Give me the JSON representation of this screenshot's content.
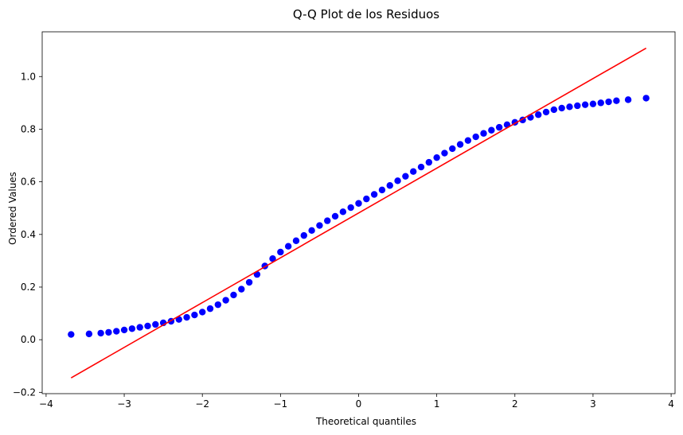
{
  "chart_data": {
    "type": "scatter",
    "title": "Q-Q Plot de los Residuos",
    "xlabel": "Theoretical quantiles",
    "ylabel": "Ordered Values",
    "xlim": [
      -4.05,
      4.05
    ],
    "ylim": [
      -0.205,
      1.17
    ],
    "xticks": [
      -4,
      -3,
      -2,
      -1,
      0,
      1,
      2,
      3,
      4
    ],
    "xtick_labels": [
      "−4",
      "−3",
      "−2",
      "−1",
      "0",
      "1",
      "2",
      "3",
      "4"
    ],
    "yticks": [
      -0.2,
      0.0,
      0.2,
      0.4,
      0.6,
      0.8,
      1.0
    ],
    "ytick_labels": [
      "−0.2",
      "0.0",
      "0.2",
      "0.4",
      "0.6",
      "0.8",
      "1.0"
    ],
    "grid": false,
    "colors": {
      "points": "#0000ff",
      "fit_line": "#ff0000"
    },
    "series": [
      {
        "kind": "points",
        "x": [
          -3.68,
          -3.45,
          -3.3,
          -3.2,
          -3.1,
          -3.0,
          -2.9,
          -2.8,
          -2.7,
          -2.6,
          -2.5,
          -2.4,
          -2.3,
          -2.2,
          -2.1,
          -2.0,
          -1.9,
          -1.8,
          -1.7,
          -1.6,
          -1.5,
          -1.4,
          -1.3,
          -1.2,
          -1.1,
          -1.0,
          -0.9,
          -0.8,
          -0.7,
          -0.6,
          -0.5,
          -0.4,
          -0.3,
          -0.2,
          -0.1,
          0.0,
          0.1,
          0.2,
          0.3,
          0.4,
          0.5,
          0.6,
          0.7,
          0.8,
          0.9,
          1.0,
          1.1,
          1.2,
          1.3,
          1.4,
          1.5,
          1.6,
          1.7,
          1.8,
          1.9,
          2.0,
          2.1,
          2.2,
          2.3,
          2.4,
          2.5,
          2.6,
          2.7,
          2.8,
          2.9,
          3.0,
          3.1,
          3.2,
          3.3,
          3.45,
          3.68
        ],
        "y": [
          0.02,
          0.022,
          0.025,
          0.028,
          0.032,
          0.037,
          0.042,
          0.047,
          0.052,
          0.058,
          0.064,
          0.07,
          0.077,
          0.085,
          0.094,
          0.105,
          0.118,
          0.133,
          0.15,
          0.17,
          0.192,
          0.218,
          0.248,
          0.28,
          0.308,
          0.333,
          0.355,
          0.376,
          0.396,
          0.415,
          0.434,
          0.452,
          0.469,
          0.486,
          0.502,
          0.518,
          0.535,
          0.552,
          0.569,
          0.586,
          0.604,
          0.621,
          0.639,
          0.656,
          0.674,
          0.692,
          0.709,
          0.726,
          0.742,
          0.757,
          0.771,
          0.784,
          0.796,
          0.807,
          0.817,
          0.826,
          0.835,
          0.845,
          0.855,
          0.865,
          0.874,
          0.88,
          0.885,
          0.889,
          0.893,
          0.896,
          0.9,
          0.904,
          0.908,
          0.912,
          0.918
        ]
      },
      {
        "kind": "fit-line",
        "x": [
          -3.68,
          3.68
        ],
        "y": [
          -0.145,
          1.108
        ]
      }
    ]
  }
}
